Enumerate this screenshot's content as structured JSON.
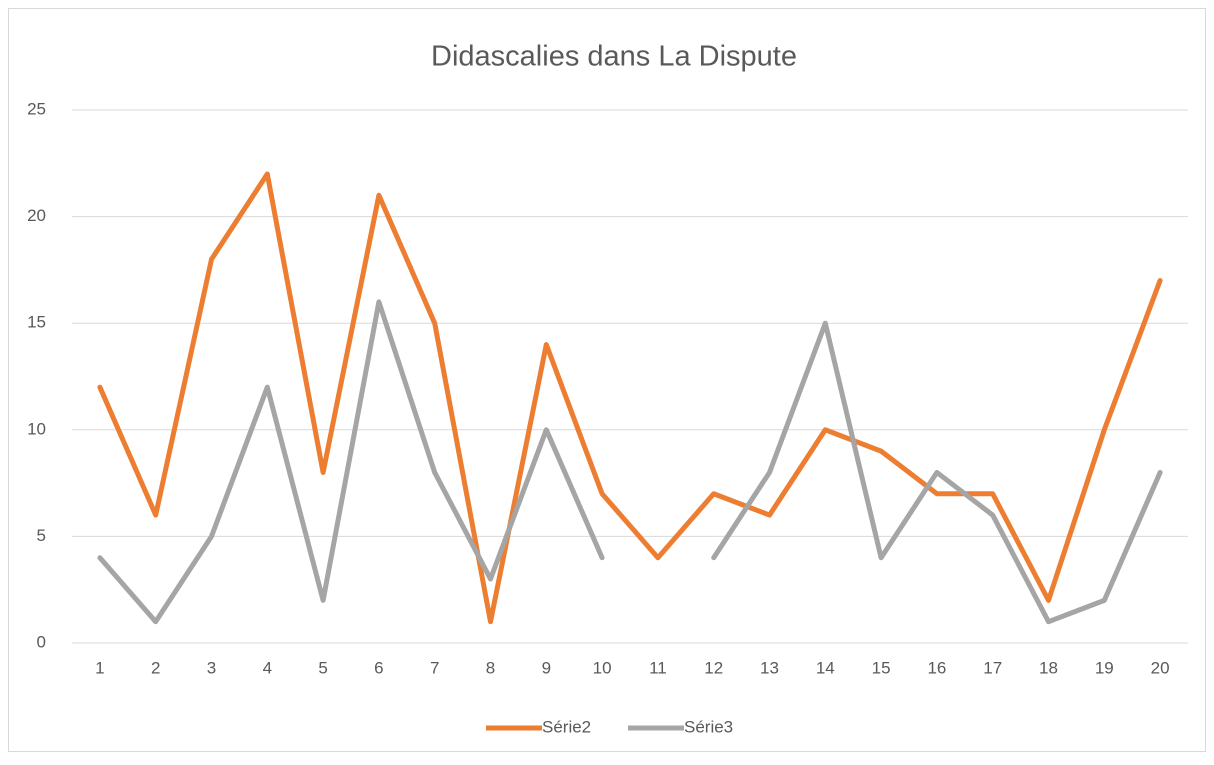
{
  "chart_data": {
    "type": "line",
    "title": "Didascalies dans La Dispute",
    "categories": [
      "1",
      "2",
      "3",
      "4",
      "5",
      "6",
      "7",
      "8",
      "9",
      "10",
      "11",
      "12",
      "13",
      "14",
      "15",
      "16",
      "17",
      "18",
      "19",
      "20"
    ],
    "series": [
      {
        "name": "Série2",
        "color": "#ed7d31",
        "values": [
          12,
          6,
          18,
          22,
          8,
          21,
          15,
          1,
          14,
          7,
          4,
          7,
          6,
          10,
          9,
          7,
          7,
          2,
          10,
          17
        ]
      },
      {
        "name": "Série3",
        "color": "#a5a5a5",
        "values": [
          4,
          1,
          5,
          12,
          2,
          16,
          8,
          3,
          10,
          4,
          null,
          4,
          8,
          15,
          4,
          8,
          6,
          1,
          2,
          8
        ]
      }
    ],
    "ylim": [
      0,
      25
    ],
    "yticks": [
      0,
      5,
      10,
      15,
      20,
      25
    ],
    "grid": true,
    "legend": "bottom"
  }
}
